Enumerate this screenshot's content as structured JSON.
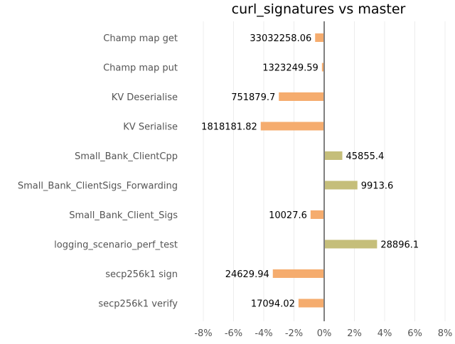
{
  "chart_data": {
    "type": "bar",
    "orientation": "horizontal",
    "title": "curl_signatures vs master",
    "xlabel": "",
    "ylabel": "",
    "xlim": [
      -8,
      8
    ],
    "xticks": [
      -8,
      -6,
      -4,
      -2,
      0,
      2,
      4,
      6,
      8
    ],
    "xtick_labels": [
      "-8%",
      "-6%",
      "-4%",
      "-2%",
      "0%",
      "2%",
      "4%",
      "6%",
      "8%"
    ],
    "grid": true,
    "legend": "none",
    "colors": {
      "negative": "#f5ac6e",
      "positive": "#c5be7a",
      "zero_line": "#808080",
      "grid": "#ececec"
    },
    "categories": [
      "Champ map get",
      "Champ map put",
      "KV Deserialise",
      "KV Serialise",
      "Small_Bank_ClientCpp",
      "Small_Bank_ClientSigs_Forwarding",
      "Small_Bank_Client_Sigs",
      "logging_scenario_perf_test",
      "secp256k1 sign",
      "secp256k1 verify"
    ],
    "values": [
      -0.6,
      -0.15,
      -3.0,
      -4.2,
      1.2,
      2.2,
      -0.9,
      3.5,
      -3.4,
      -1.7
    ],
    "value_labels": [
      "33032258.06",
      "1323249.59",
      "751879.7",
      "1818181.82",
      "45855.4",
      "9913.6",
      "10027.6",
      "28896.1",
      "24629.94",
      "17094.02"
    ]
  }
}
